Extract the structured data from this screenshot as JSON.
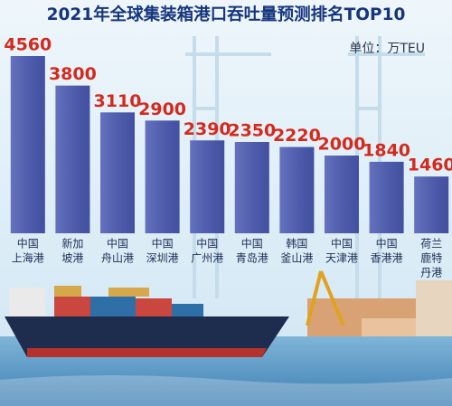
{
  "chart_data": {
    "type": "bar",
    "title": "2021年全球集装箱港口吞吐量预测排名TOP10",
    "unit": "单位：万TEU",
    "categories": [
      [
        "中国",
        "上海港"
      ],
      [
        "新加",
        "坡港"
      ],
      [
        "中国",
        "舟山港"
      ],
      [
        "中国",
        "深圳港"
      ],
      [
        "中国",
        "广州港"
      ],
      [
        "中国",
        "青岛港"
      ],
      [
        "韩国",
        "釜山港"
      ],
      [
        "中国",
        "天津港"
      ],
      [
        "中国",
        "香港港"
      ],
      [
        "荷兰",
        "鹿特",
        "丹港"
      ]
    ],
    "values": [
      4560,
      3800,
      3110,
      2900,
      2390,
      2350,
      2220,
      2000,
      1840,
      1460
    ],
    "color": "#4a59b3"
  }
}
